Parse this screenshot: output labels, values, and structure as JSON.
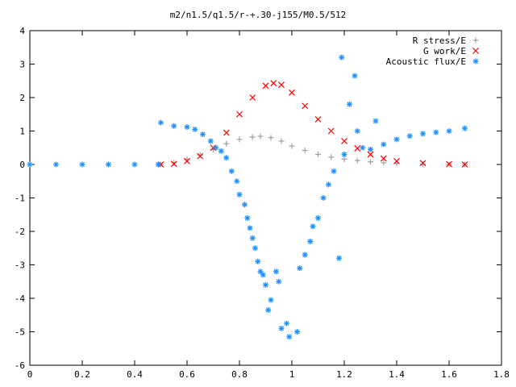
{
  "chart_data": {
    "type": "scatter",
    "title": "m2/n1.5/q1.5/r-+.30-j155/M0.5/512",
    "xlabel": "",
    "ylabel": "",
    "xlim": [
      0,
      1.8
    ],
    "ylim": [
      -6,
      4
    ],
    "xticks": [
      0,
      0.2,
      0.4,
      0.6,
      0.8,
      1,
      1.2,
      1.4,
      1.6,
      1.8
    ],
    "yticks": [
      -6,
      -5,
      -4,
      -3,
      -2,
      -1,
      0,
      1,
      2,
      3,
      4
    ],
    "xtick_labels": [
      "0",
      "0.2",
      "0.4",
      "0.6",
      "0.8",
      "1",
      "1.2",
      "1.4",
      "1.6",
      "1.8"
    ],
    "ytick_labels": [
      "-6",
      "-5",
      "-4",
      "-3",
      "-2",
      "-1",
      "0",
      "1",
      "2",
      "3",
      "4"
    ],
    "grid": false,
    "legend_position": "top-right",
    "series": [
      {
        "name": "R stress/E",
        "marker": "+",
        "color": "#a0a0a0",
        "points": [
          [
            0.5,
            0.0
          ],
          [
            0.55,
            0.05
          ],
          [
            0.6,
            0.15
          ],
          [
            0.65,
            0.28
          ],
          [
            0.7,
            0.45
          ],
          [
            0.75,
            0.62
          ],
          [
            0.8,
            0.75
          ],
          [
            0.85,
            0.82
          ],
          [
            0.88,
            0.84
          ],
          [
            0.92,
            0.8
          ],
          [
            0.96,
            0.7
          ],
          [
            1.0,
            0.55
          ],
          [
            1.05,
            0.42
          ],
          [
            1.1,
            0.3
          ],
          [
            1.15,
            0.22
          ],
          [
            1.2,
            0.16
          ],
          [
            1.25,
            0.12
          ],
          [
            1.3,
            0.08
          ],
          [
            1.35,
            0.05
          ],
          [
            1.4,
            0.03
          ],
          [
            1.5,
            0.01
          ],
          [
            1.6,
            0.0
          ],
          [
            1.66,
            0.0
          ]
        ]
      },
      {
        "name": "G work/E",
        "marker": "x",
        "color": "#ff0000",
        "points": [
          [
            0.5,
            0.0
          ],
          [
            0.55,
            0.02
          ],
          [
            0.6,
            0.1
          ],
          [
            0.65,
            0.25
          ],
          [
            0.7,
            0.5
          ],
          [
            0.75,
            0.95
          ],
          [
            0.8,
            1.5
          ],
          [
            0.85,
            2.0
          ],
          [
            0.9,
            2.35
          ],
          [
            0.93,
            2.43
          ],
          [
            0.96,
            2.38
          ],
          [
            1.0,
            2.15
          ],
          [
            1.05,
            1.75
          ],
          [
            1.1,
            1.35
          ],
          [
            1.15,
            1.0
          ],
          [
            1.2,
            0.7
          ],
          [
            1.25,
            0.48
          ],
          [
            1.3,
            0.3
          ],
          [
            1.35,
            0.18
          ],
          [
            1.4,
            0.1
          ],
          [
            1.5,
            0.04
          ],
          [
            1.6,
            0.01
          ],
          [
            1.66,
            0.0
          ]
        ]
      },
      {
        "name": "Acoustic flux/E",
        "marker": "*",
        "color": "#1e90ff",
        "points": [
          [
            0.0,
            0.0
          ],
          [
            0.1,
            0.0
          ],
          [
            0.2,
            0.0
          ],
          [
            0.3,
            0.0
          ],
          [
            0.4,
            0.0
          ],
          [
            0.49,
            0.0
          ],
          [
            0.5,
            1.25
          ],
          [
            0.55,
            1.15
          ],
          [
            0.6,
            1.12
          ],
          [
            0.63,
            1.05
          ],
          [
            0.66,
            0.9
          ],
          [
            0.69,
            0.7
          ],
          [
            0.71,
            0.5
          ],
          [
            0.73,
            0.4
          ],
          [
            0.75,
            0.2
          ],
          [
            0.77,
            -0.2
          ],
          [
            0.79,
            -0.5
          ],
          [
            0.8,
            -0.9
          ],
          [
            0.82,
            -1.2
          ],
          [
            0.83,
            -1.6
          ],
          [
            0.84,
            -1.9
          ],
          [
            0.85,
            -2.2
          ],
          [
            0.86,
            -2.5
          ],
          [
            0.87,
            -2.9
          ],
          [
            0.88,
            -3.2
          ],
          [
            0.89,
            -3.3
          ],
          [
            0.9,
            -3.6
          ],
          [
            0.91,
            -4.35
          ],
          [
            0.92,
            -4.05
          ],
          [
            0.94,
            -3.2
          ],
          [
            0.95,
            -3.5
          ],
          [
            0.96,
            -4.9
          ],
          [
            0.98,
            -4.75
          ],
          [
            0.99,
            -5.15
          ],
          [
            1.02,
            -5.0
          ],
          [
            1.03,
            -3.1
          ],
          [
            1.05,
            -2.7
          ],
          [
            1.07,
            -2.3
          ],
          [
            1.08,
            -1.85
          ],
          [
            1.1,
            -1.6
          ],
          [
            1.12,
            -1.0
          ],
          [
            1.14,
            -0.6
          ],
          [
            1.16,
            -0.2
          ],
          [
            1.18,
            -2.8
          ],
          [
            1.19,
            3.2
          ],
          [
            1.2,
            0.3
          ],
          [
            1.22,
            1.8
          ],
          [
            1.24,
            2.65
          ],
          [
            1.25,
            1.0
          ],
          [
            1.27,
            0.5
          ],
          [
            1.3,
            0.45
          ],
          [
            1.32,
            1.3
          ],
          [
            1.35,
            0.6
          ],
          [
            1.4,
            0.75
          ],
          [
            1.45,
            0.85
          ],
          [
            1.5,
            0.92
          ],
          [
            1.55,
            0.96
          ],
          [
            1.6,
            1.0
          ],
          [
            1.66,
            1.08
          ]
        ]
      }
    ]
  }
}
